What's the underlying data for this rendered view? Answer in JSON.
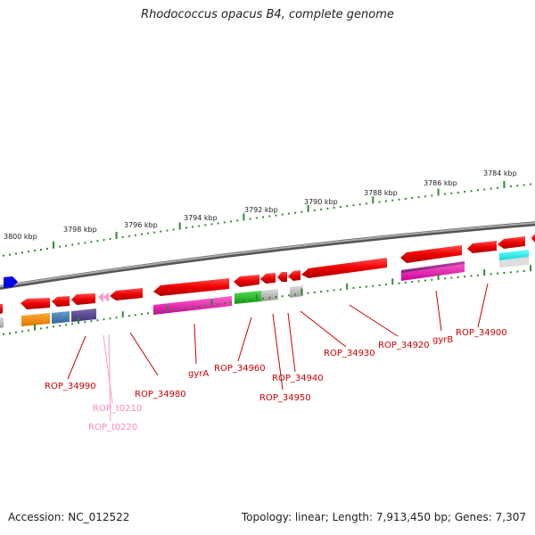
{
  "title": "Rhodococcus opacus B4, complete genome",
  "accession": "Accession: NC_012522",
  "summary": "Topology: linear; Length: 7,913,450 bp; Genes: 7,307",
  "ruler_labels": [
    "3800 kbp",
    "3798 kbp",
    "3796 kbp",
    "3794 kbp",
    "3792 kbp",
    "3790 kbp",
    "3788 kbp",
    "3786 kbp",
    "3784 kbp"
  ],
  "gene_labels": [
    "ROP_34990",
    "ROP_34980",
    "gyrA",
    "ROP_34960",
    "ROP_34950",
    "ROP_34940",
    "ROP_34930",
    "ROP_34920",
    "gyrB",
    "ROP_34900"
  ],
  "trna_labels": [
    "ROP_t0210",
    "ROP_t0220"
  ],
  "colors": {
    "cds": "#ee0000",
    "trna": "#ff99cc",
    "tick": "#338833",
    "backbone": "#888888",
    "blue_marker": "#0000ee"
  }
}
